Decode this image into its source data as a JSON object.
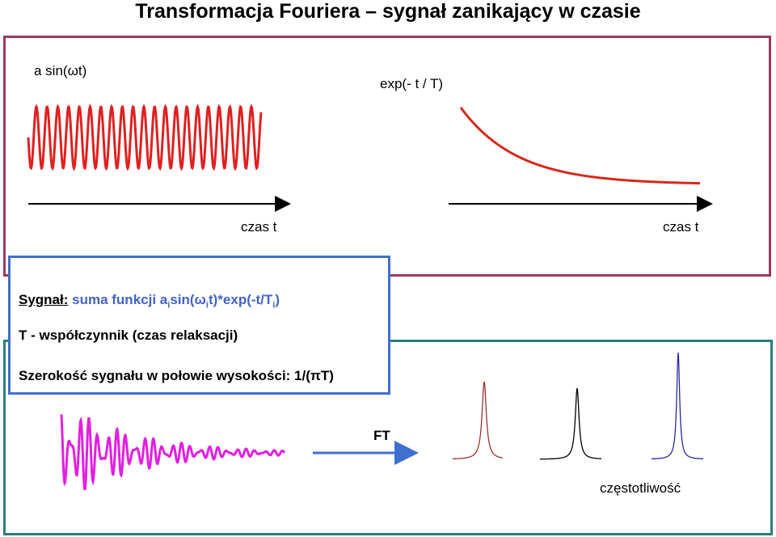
{
  "title": "Transformacja Fouriera – sygnał zanikający w czasie",
  "top": {
    "sin_label": "a sin(ωt)",
    "exp_label": "exp(- t / T)",
    "time_axis_left": "czas t",
    "time_axis_right": "czas t"
  },
  "info": {
    "signal_prefix": "Sygnał:",
    "signal_text": " suma funkcji ",
    "formula_a": "a",
    "formula_i1": "i",
    "formula_sin": "sin(ω",
    "formula_i2": "i",
    "formula_t": "t)*exp(-t/T",
    "formula_i3": "i",
    "formula_close": ")",
    "line2": "T - współczynnik (czas relaksacji)",
    "line3": "Szerokość sygnału w połowie wysokości: 1/(πT)"
  },
  "bottom": {
    "ft_label": "FT",
    "freq_label": "częstotliwość"
  },
  "colors": {
    "sine": "#e02020",
    "decay": "#d42a1e",
    "fid": "#e020e0",
    "arrow_blue": "#3f6fd1",
    "peak1": "#a03030",
    "peak2": "#000000",
    "peak3": "#2a2aa0"
  }
}
